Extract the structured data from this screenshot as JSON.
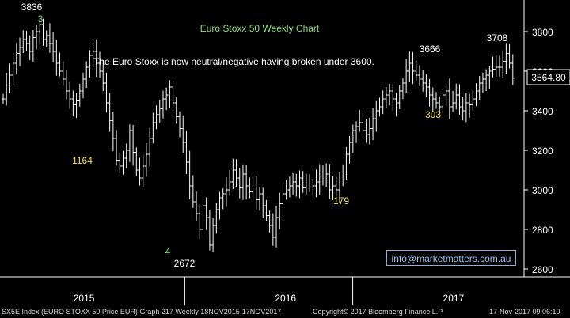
{
  "chart_data": {
    "type": "ohlc",
    "title": "Euro Stoxx 50 Weekly Chart",
    "annotation": "The Euro Stoxx is now neutral/negative having broken under 3600.",
    "ylim": [
      2560,
      3960
    ],
    "y_ticks": [
      2600,
      2800,
      3000,
      3200,
      3400,
      3600,
      3800
    ],
    "x_tick_labels": [
      {
        "label": "2015",
        "x": 2015.3
      },
      {
        "label": "2016",
        "x": 2016.5
      },
      {
        "label": "2017",
        "x": 2017.5
      }
    ],
    "year_dividers": [
      2015.9,
      2016.9
    ],
    "last_price": "3564.80",
    "x_range": [
      2014.8,
      2017.92
    ],
    "series": [
      {
        "closes": [
          3460,
          3530,
          3580,
          3640,
          3690,
          3720,
          3760,
          3740,
          3700,
          3770,
          3800,
          3836,
          3760,
          3780,
          3740,
          3700,
          3640,
          3600,
          3560,
          3500,
          3460,
          3430,
          3450,
          3500,
          3560,
          3620,
          3680,
          3700,
          3640,
          3600,
          3540,
          3440,
          3350,
          3260,
          3150,
          3120,
          3160,
          3200,
          3300,
          3190,
          3100,
          3060,
          3120,
          3180,
          3260,
          3340,
          3380,
          3410,
          3460,
          3480,
          3520,
          3440,
          3370,
          3310,
          3240,
          3140,
          3020,
          2940,
          2880,
          2800,
          2920,
          2860,
          2720,
          2820,
          2900,
          2960,
          2980,
          3000,
          3040,
          3100,
          3060,
          3010,
          3080,
          3020,
          2990,
          3030,
          2950,
          2980,
          2920,
          2870,
          2820,
          2760,
          2860,
          2930,
          2980,
          3000,
          3020,
          3040,
          3020,
          3060,
          3010,
          3050,
          3030,
          3020,
          3040,
          3070,
          3050,
          3080,
          3000,
          3020,
          3000,
          3050,
          3090,
          3180,
          3240,
          3300,
          3320,
          3340,
          3300,
          3280,
          3310,
          3360,
          3400,
          3420,
          3460,
          3480,
          3500,
          3460,
          3440,
          3500,
          3540,
          3600,
          3640,
          3600,
          3580,
          3560,
          3540,
          3520,
          3480,
          3460,
          3440,
          3420,
          3480,
          3500,
          3420,
          3440,
          3480,
          3420,
          3400,
          3440,
          3430,
          3460,
          3500,
          3540,
          3560,
          3580,
          3600,
          3610,
          3620,
          3620,
          3650,
          3690,
          3640,
          3564.8
        ],
        "labels": [
          {
            "text": "3836",
            "x": 2015.0,
            "y": 3836
          },
          {
            "text": "3",
            "x": 2015.0,
            "y": 3836
          },
          {
            "text": "1164",
            "x": 2015.4,
            "y": 3150
          },
          {
            "text": "4",
            "x": 2015.97,
            "y": 2720
          },
          {
            "text": "2672",
            "x": 2015.97,
            "y": 2672
          },
          {
            "text": "179",
            "x": 2016.83,
            "y": 3000
          },
          {
            "text": "3666",
            "x": 2017.35,
            "y": 3666
          },
          {
            "text": "303",
            "x": 2017.5,
            "y": 3400
          },
          {
            "text": "3708",
            "x": 2017.8,
            "y": 3708
          }
        ]
      }
    ]
  },
  "email": "info@marketmatters.com.au",
  "footer": {
    "left": "SX5E Index (EURO STOXX 50 Price EUR) Graph 217  Weekly 18NOV2015-17NOV2017",
    "copyright": "Copyright© 2017 Bloomberg Finance L.P.",
    "timestamp": "17-Nov-2017 09:06:10"
  },
  "colors": {
    "background": "#000000",
    "bars": "#ffffff",
    "title": "#8ddb7a",
    "label_white": "#ffffff",
    "label_yellow": "#f4e04a",
    "label_green": "#7fd36a",
    "email_text": "#9ec3f0"
  }
}
